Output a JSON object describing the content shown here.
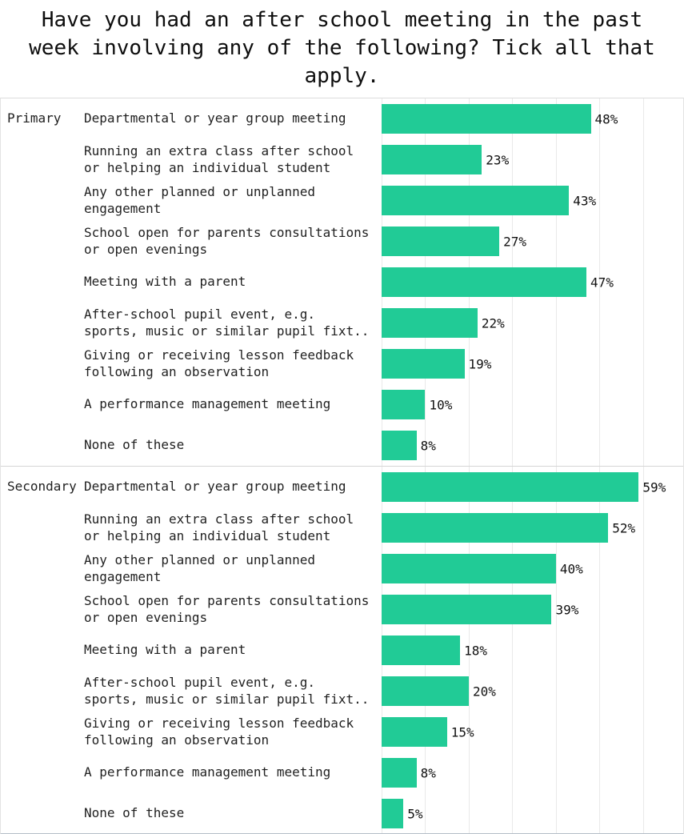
{
  "chart_data": {
    "type": "bar",
    "orientation": "horizontal",
    "title": "Have you had an after school meeting in the past week involving any of the following? Tick all that apply.",
    "title_display": "Have you had an after school meeting in the past\nweek involving any of the following? Tick all that\napply.",
    "categories": [
      "Departmental or year group meeting",
      "Running an extra class after school or helping an individual student",
      "Any other planned or unplanned engagement",
      "School open for parents consultations or open evenings",
      "Meeting with a parent",
      "After-school pupil event, e.g. sports, music or similar pupil fixt..",
      "Giving or receiving lesson feedback following an observation",
      "A performance management meeting",
      "None of these"
    ],
    "categories_display": [
      "Departmental or year group meeting",
      "Running an extra class after school\nor helping an individual student",
      "Any other planned or unplanned\nengagement",
      "School open for parents consultations\nor open evenings",
      "Meeting with a parent",
      "After-school pupil event, e.g.\nsports, music or similar pupil fixt..",
      "Giving or receiving lesson feedback\nfollowing an observation",
      "A performance management meeting",
      "None of these"
    ],
    "series": [
      {
        "name": "Primary",
        "values": [
          48,
          23,
          43,
          27,
          47,
          22,
          19,
          10,
          8
        ]
      },
      {
        "name": "Secondary",
        "values": [
          59,
          52,
          40,
          39,
          18,
          20,
          15,
          8,
          5
        ]
      }
    ],
    "value_suffix": "%",
    "xlim": [
      0,
      69.2
    ],
    "gridlines_percent": [
      0,
      10,
      20,
      30,
      40,
      50,
      60
    ],
    "grid": true,
    "legend_position": "none",
    "colors": {
      "bar": "#21cb96",
      "gridline": "#e9e9e9",
      "text": "#1f1f1f",
      "panel_border": "#dcdcdc",
      "section_divider": "#d6d6d6"
    }
  }
}
